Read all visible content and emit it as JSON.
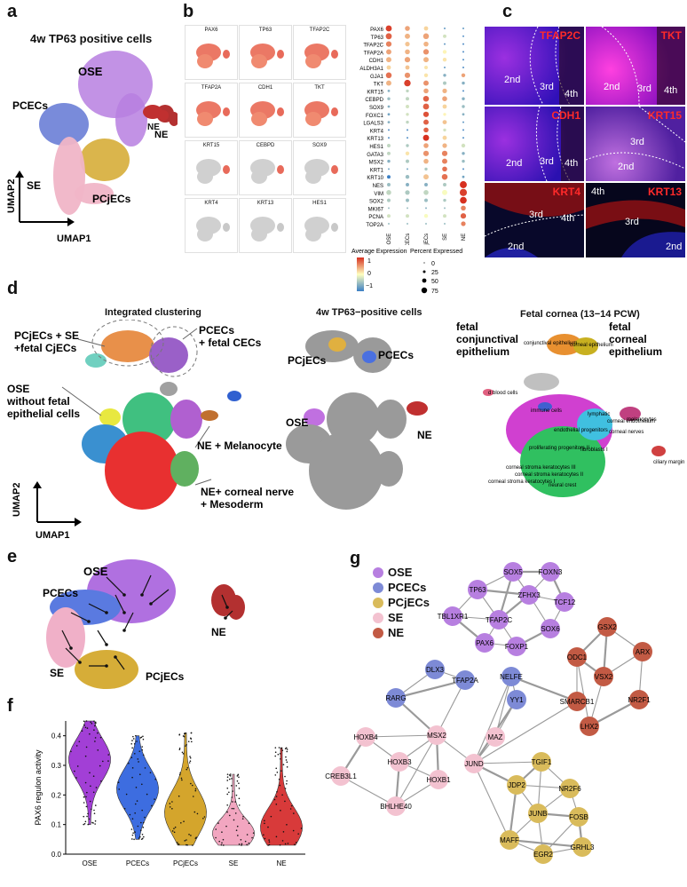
{
  "panels": {
    "a": {
      "letter": "a",
      "title": "4w TP63 positive cells",
      "clusters": [
        {
          "name": "OSE",
          "color": "#b77fe0"
        },
        {
          "name": "PCECs",
          "color": "#6a7ed6"
        },
        {
          "name": "NE",
          "color": "#b33030"
        },
        {
          "name": "PCjECs",
          "color": "#d6ad38"
        },
        {
          "name": "SE",
          "color": "#f0b5c7"
        }
      ],
      "axis_y": "UMAP2",
      "axis_x": "UMAP1"
    },
    "b": {
      "letter": "b",
      "feature_genes": [
        "PAX6",
        "TP63",
        "TFAP2C",
        "TFAP2A",
        "CDH1",
        "TKT",
        "KRT15",
        "CEBPD",
        "SOX9",
        "KRT4",
        "KRT13",
        "HES1"
      ],
      "legend_expr_title": "Average Expression",
      "legend_expr_ticks": [
        "1",
        "0",
        "−1"
      ],
      "legend_pct_title": "Percent Expressed",
      "legend_pct_ticks": [
        "0",
        "25",
        "50",
        "75"
      ]
    },
    "c": {
      "letter": "c",
      "tiles": [
        {
          "marker": "TFAP2C",
          "zones": [
            "2nd",
            "3rd",
            "4th"
          ]
        },
        {
          "marker": "TKT",
          "zones": [
            "2nd",
            "3rd",
            "4th"
          ]
        },
        {
          "marker": "CDH1",
          "zones": [
            "2nd",
            "3rd",
            "4th"
          ]
        },
        {
          "marker": "KRT15",
          "zones": [
            "3rd",
            "2nd"
          ]
        },
        {
          "marker": "KRT4",
          "zones": [
            "3rd",
            "4th",
            "2nd"
          ]
        },
        {
          "marker": "KRT13",
          "zones": [
            "4th",
            "3rd",
            "2nd"
          ]
        }
      ]
    },
    "d": {
      "letter": "d",
      "sub1_title": "Integrated clustering",
      "sub2_title": "4w TP63−positive cells",
      "sub3_title": "Fetal cornea (13−14 PCW)",
      "sub1_labels": [
        "PCjECs + SE\n+fetal CjECs",
        "PCECs\n+ fetal CECs",
        "OSE\nwithout fetal\nepithelial cells",
        "NE + Melanocyte",
        "NE+ corneal nerve\n+ Mesoderm"
      ],
      "sub2_labels": [
        "PCjECs",
        "PCECs",
        "OSE",
        "NE"
      ],
      "sub3_labels": [
        "fetal\nconjunctival\nepithelium",
        "fetal\ncorneal\nepithelium"
      ],
      "sub3_small_labels": [
        "conjunctival epithelium",
        "corneal epithelium",
        "d blood cells",
        "immune cells",
        "lymphatic",
        "corneal endothelium",
        "melanocytes",
        "endothelial progenitors",
        "corneal nerves",
        "proliferating progenitors II",
        "fibroblasts I",
        "corneal stroma keratocytes III",
        "corneal stroma keratocytes II",
        "corneal stroma keratocytes I",
        "neural crest",
        "ciliary margin"
      ],
      "axis_y": "UMAP2",
      "axis_x": "UMAP1"
    },
    "e": {
      "letter": "e",
      "labels": [
        "OSE",
        "PCECs",
        "NE",
        "SE",
        "PCjECs"
      ]
    },
    "f": {
      "letter": "f",
      "ylabel": "PAX6 regulon activity",
      "yticks": [
        "0.0",
        "0.1",
        "0.2",
        "0.3",
        "0.4"
      ]
    },
    "g": {
      "letter": "g",
      "legend": [
        {
          "name": "OSE",
          "color": "#b77fe0"
        },
        {
          "name": "PCECs",
          "color": "#7d8ad6"
        },
        {
          "name": "PCjECs",
          "color": "#d9bb5b"
        },
        {
          "name": "SE",
          "color": "#f3c2d0"
        },
        {
          "name": "NE",
          "color": "#c25a44"
        }
      ]
    }
  },
  "chart_data": {
    "type": "violin",
    "title": "",
    "xlabel": "",
    "ylabel": "PAX6 regulon activity",
    "ylim": [
      0.0,
      0.45
    ],
    "categories": [
      "OSE",
      "PCECs",
      "PCjECs",
      "SE",
      "NE"
    ],
    "colors": [
      "#a23fd6",
      "#3d6de0",
      "#d4a52c",
      "#f2a6c0",
      "#d83a3a"
    ],
    "medians": [
      0.32,
      0.22,
      0.14,
      0.07,
      0.09
    ],
    "mins": [
      0.1,
      0.05,
      0.03,
      0.03,
      0.03
    ],
    "maxs": [
      0.45,
      0.4,
      0.41,
      0.27,
      0.36
    ]
  },
  "dotplot": {
    "genes": [
      "PAX6",
      "TP63",
      "TFAP2C",
      "TFAP2A",
      "CDH1",
      "ALDH3A1",
      "GJA1",
      "TKT",
      "KRT15",
      "CEBPD",
      "SOX9",
      "FOXC1",
      "LGALS3",
      "KRT4",
      "KRT13",
      "HES1",
      "GATA3",
      "MSX2",
      "KRT1",
      "KRT10",
      "NES",
      "VIM",
      "SOX2",
      "MKI67",
      "PCNA",
      "TOP2A"
    ],
    "groups": [
      "OSE",
      "PCECs",
      "PCjECs",
      "SE",
      "NE"
    ],
    "expression": [
      [
        1.2,
        0.6,
        0.3,
        -0.8,
        -0.8
      ],
      [
        1.0,
        0.5,
        0.6,
        -0.2,
        -0.9
      ],
      [
        0.8,
        0.4,
        0.5,
        -0.8,
        -0.9
      ],
      [
        0.6,
        0.5,
        0.7,
        0.1,
        -0.9
      ],
      [
        0.5,
        0.6,
        0.5,
        0.2,
        -0.9
      ],
      [
        0.3,
        0.4,
        0.2,
        -0.8,
        -0.9
      ],
      [
        0.9,
        0.7,
        0.2,
        -0.6,
        0.6
      ],
      [
        0.5,
        1.2,
        0.7,
        -0.4,
        -0.6
      ],
      [
        -0.6,
        -0.3,
        0.6,
        0.5,
        -0.9
      ],
      [
        -0.5,
        -0.3,
        1.0,
        0.6,
        -0.6
      ],
      [
        -0.6,
        -0.2,
        1.0,
        0.3,
        -0.5
      ],
      [
        -0.7,
        -0.2,
        1.1,
        0.1,
        -0.6
      ],
      [
        -0.6,
        -0.3,
        1.0,
        0.4,
        -0.8
      ],
      [
        -0.9,
        -0.9,
        1.0,
        -0.2,
        -0.9
      ],
      [
        -0.9,
        -0.9,
        1.3,
        0.3,
        -0.9
      ],
      [
        -0.3,
        -0.4,
        0.6,
        0.5,
        -0.2
      ],
      [
        -0.3,
        0.2,
        0.7,
        0.8,
        -0.6
      ],
      [
        -0.6,
        -0.4,
        0.5,
        0.8,
        -0.5
      ],
      [
        -0.7,
        -0.7,
        -0.4,
        0.9,
        -0.9
      ],
      [
        -1.0,
        -0.5,
        0.4,
        0.9,
        -0.7
      ],
      [
        -0.5,
        -0.6,
        -0.6,
        -0.4,
        1.3
      ],
      [
        -0.3,
        -0.4,
        -0.3,
        0.0,
        1.2
      ],
      [
        -0.4,
        -0.5,
        -0.5,
        -0.4,
        1.3
      ],
      [
        -0.5,
        -0.5,
        -0.6,
        -0.5,
        0.8
      ],
      [
        -0.2,
        -0.2,
        0.0,
        -0.2,
        1.0
      ],
      [
        -0.5,
        -0.5,
        -0.5,
        -0.5,
        0.8
      ]
    ],
    "percent": [
      [
        60,
        40,
        30,
        5,
        5
      ],
      [
        60,
        45,
        55,
        20,
        5
      ],
      [
        50,
        35,
        40,
        5,
        5
      ],
      [
        45,
        40,
        50,
        25,
        5
      ],
      [
        45,
        50,
        45,
        25,
        5
      ],
      [
        30,
        30,
        20,
        5,
        5
      ],
      [
        55,
        50,
        25,
        15,
        25
      ],
      [
        45,
        70,
        45,
        20,
        15
      ],
      [
        10,
        15,
        40,
        35,
        5
      ],
      [
        15,
        20,
        55,
        40,
        15
      ],
      [
        10,
        20,
        60,
        30,
        15
      ],
      [
        10,
        15,
        50,
        15,
        10
      ],
      [
        10,
        15,
        45,
        30,
        5
      ],
      [
        5,
        5,
        40,
        15,
        5
      ],
      [
        5,
        5,
        60,
        30,
        5
      ],
      [
        20,
        15,
        40,
        35,
        25
      ],
      [
        20,
        25,
        50,
        50,
        15
      ],
      [
        15,
        20,
        40,
        45,
        15
      ],
      [
        5,
        5,
        15,
        40,
        5
      ],
      [
        20,
        25,
        45,
        55,
        10
      ],
      [
        20,
        20,
        20,
        20,
        80
      ],
      [
        40,
        35,
        40,
        45,
        85
      ],
      [
        20,
        20,
        20,
        15,
        75
      ],
      [
        5,
        5,
        5,
        5,
        40
      ],
      [
        20,
        20,
        25,
        20,
        50
      ],
      [
        5,
        5,
        5,
        5,
        35
      ]
    ]
  },
  "network": {
    "nodes": [
      {
        "id": "SOX5",
        "g": "OSE"
      },
      {
        "id": "FOXN3",
        "g": "OSE"
      },
      {
        "id": "TP63",
        "g": "OSE"
      },
      {
        "id": "ZFHX3",
        "g": "OSE"
      },
      {
        "id": "TCF12",
        "g": "OSE"
      },
      {
        "id": "TBL1XR1",
        "g": "OSE"
      },
      {
        "id": "TFAP2C",
        "g": "OSE"
      },
      {
        "id": "SOX6",
        "g": "OSE"
      },
      {
        "id": "PAX6",
        "g": "OSE"
      },
      {
        "id": "FOXP1",
        "g": "OSE"
      },
      {
        "id": "DLX3",
        "g": "PCECs"
      },
      {
        "id": "TFAP2A",
        "g": "PCECs"
      },
      {
        "id": "NELFE",
        "g": "PCECs"
      },
      {
        "id": "RARG",
        "g": "PCECs"
      },
      {
        "id": "YY1",
        "g": "PCECs"
      },
      {
        "id": "GSX2",
        "g": "NE"
      },
      {
        "id": "ARX",
        "g": "NE"
      },
      {
        "id": "ODC1",
        "g": "NE"
      },
      {
        "id": "VSX2",
        "g": "NE"
      },
      {
        "id": "SMARCB1",
        "g": "NE"
      },
      {
        "id": "NR2F1",
        "g": "NE"
      },
      {
        "id": "LHX2",
        "g": "NE"
      },
      {
        "id": "MSX2",
        "g": "SE"
      },
      {
        "id": "MAZ",
        "g": "SE"
      },
      {
        "id": "HOXB4",
        "g": "SE"
      },
      {
        "id": "JUND",
        "g": "SE"
      },
      {
        "id": "HOXB3",
        "g": "SE"
      },
      {
        "id": "CREB3L1",
        "g": "SE"
      },
      {
        "id": "HOXB1",
        "g": "SE"
      },
      {
        "id": "BHLHE40",
        "g": "SE"
      },
      {
        "id": "TGIF1",
        "g": "PCjECs"
      },
      {
        "id": "JDP2",
        "g": "PCjECs"
      },
      {
        "id": "NR2F6",
        "g": "PCjECs"
      },
      {
        "id": "JUNB",
        "g": "PCjECs"
      },
      {
        "id": "FOSB",
        "g": "PCjECs"
      },
      {
        "id": "MAFF",
        "g": "PCjECs"
      },
      {
        "id": "EGR2",
        "g": "PCjECs"
      },
      {
        "id": "GRHL3",
        "g": "PCjECs"
      }
    ]
  }
}
